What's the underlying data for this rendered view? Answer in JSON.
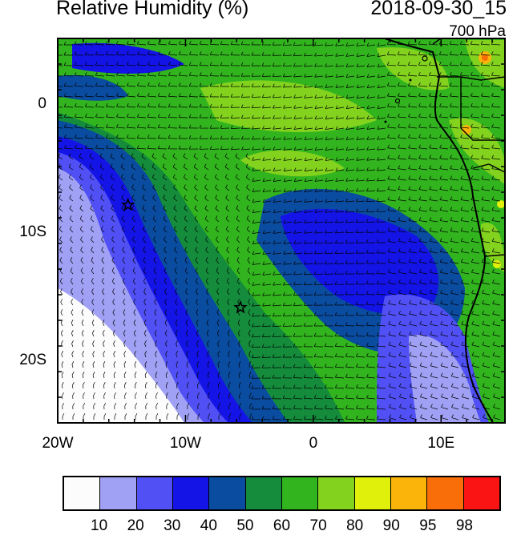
{
  "title": "Relative Humidity (%)",
  "timestamp": "2018-09-30_15",
  "pressure_level": "700 hPa",
  "map": {
    "lon_range": [
      -20,
      15
    ],
    "lat_range": [
      -25,
      5
    ],
    "x_ticks": [
      {
        "lon": -20,
        "label": "20W"
      },
      {
        "lon": -10,
        "label": "10W"
      },
      {
        "lon": 0,
        "label": "0"
      },
      {
        "lon": 10,
        "label": "10E"
      }
    ],
    "y_ticks": [
      {
        "lat": 0,
        "label": "0"
      },
      {
        "lat": -10,
        "label": "10S"
      },
      {
        "lat": -20,
        "label": "20S"
      }
    ],
    "markers": [
      {
        "name": "star",
        "lon": -14.5,
        "lat": -8.0
      },
      {
        "name": "star",
        "lon": -5.7,
        "lat": -16.0
      }
    ]
  },
  "colorbar": {
    "colors": [
      "#fcfcfc",
      "#a0a0f5",
      "#5050f5",
      "#1414e6",
      "#0a4ca0",
      "#148c3c",
      "#32b41e",
      "#82d21e",
      "#e1f00a",
      "#fab40a",
      "#fa6e0a",
      "#fa1414"
    ],
    "labels": [
      "10",
      "20",
      "30",
      "40",
      "50",
      "60",
      "70",
      "80",
      "90",
      "95",
      "98"
    ]
  }
}
